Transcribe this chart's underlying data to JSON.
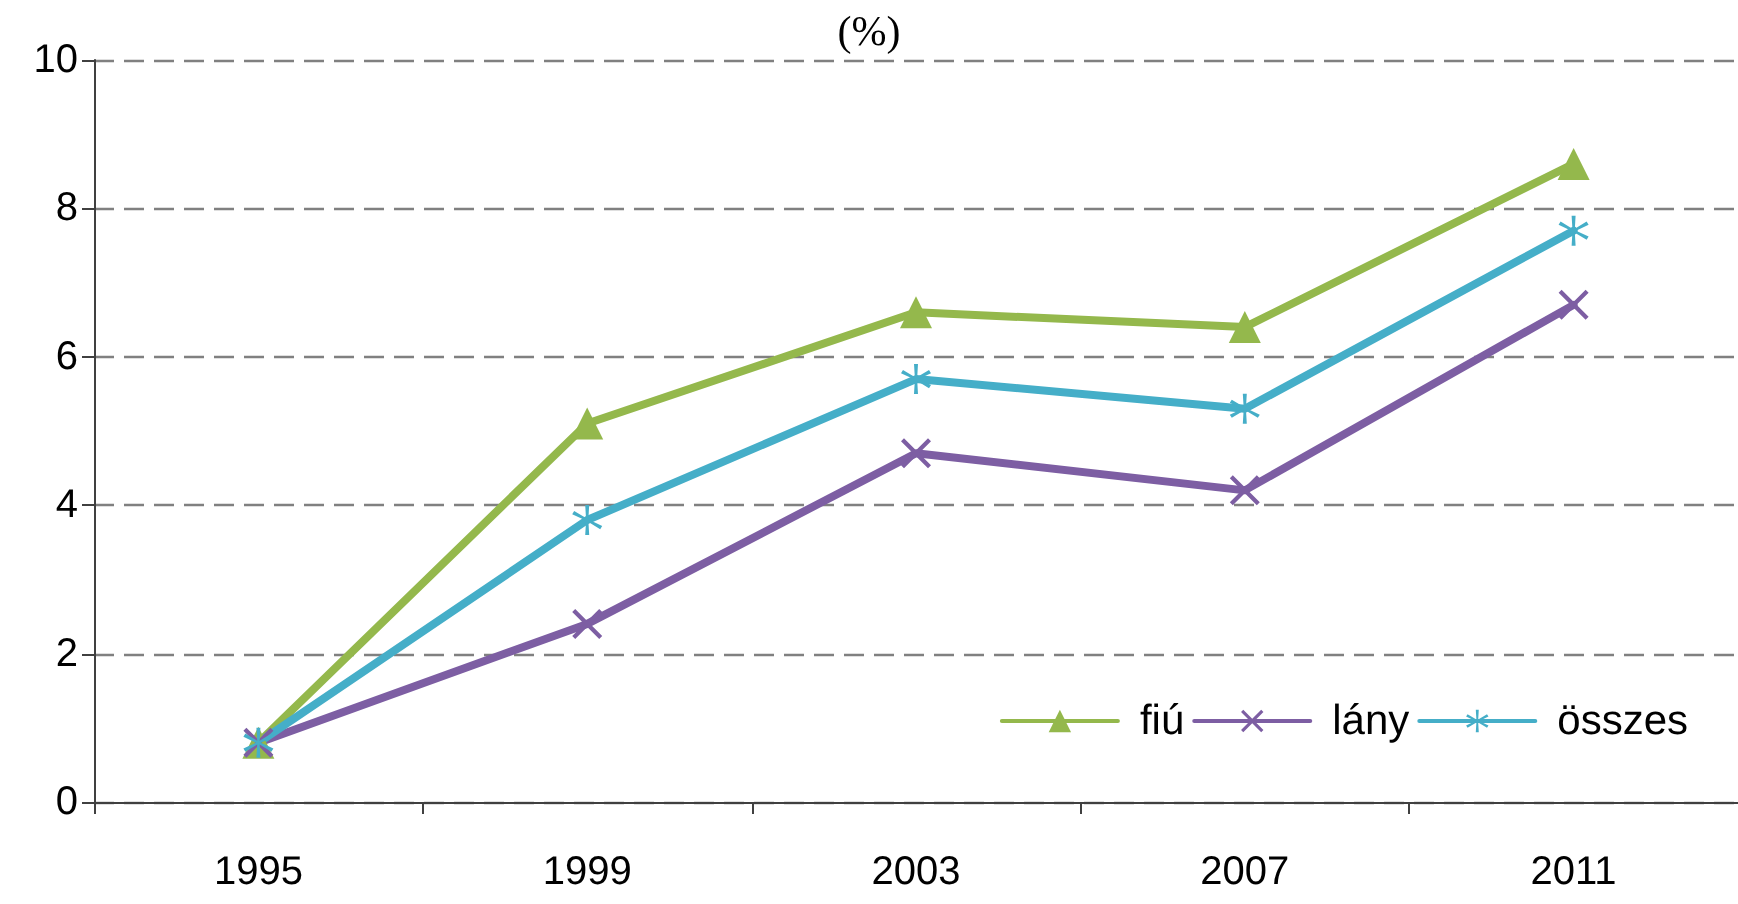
{
  "chart_data": {
    "type": "line",
    "title": "(%)",
    "categories": [
      "1995",
      "1999",
      "2003",
      "2007",
      "2011"
    ],
    "series": [
      {
        "name": "fiú",
        "color": "#94b84c",
        "marker": "triangle",
        "values": [
          0.8,
          5.1,
          6.6,
          6.4,
          8.6
        ]
      },
      {
        "name": "lány",
        "color": "#7d5ea3",
        "marker": "cross",
        "values": [
          0.8,
          2.4,
          4.7,
          4.2,
          6.7
        ]
      },
      {
        "name": "összes",
        "color": "#45aec8",
        "marker": "star",
        "values": [
          0.8,
          3.8,
          5.7,
          5.3,
          7.7
        ]
      }
    ],
    "ylim": [
      0,
      10
    ],
    "yticks": [
      0,
      2,
      4,
      6,
      8,
      10
    ],
    "grid": "y",
    "legend": "bottom right"
  }
}
